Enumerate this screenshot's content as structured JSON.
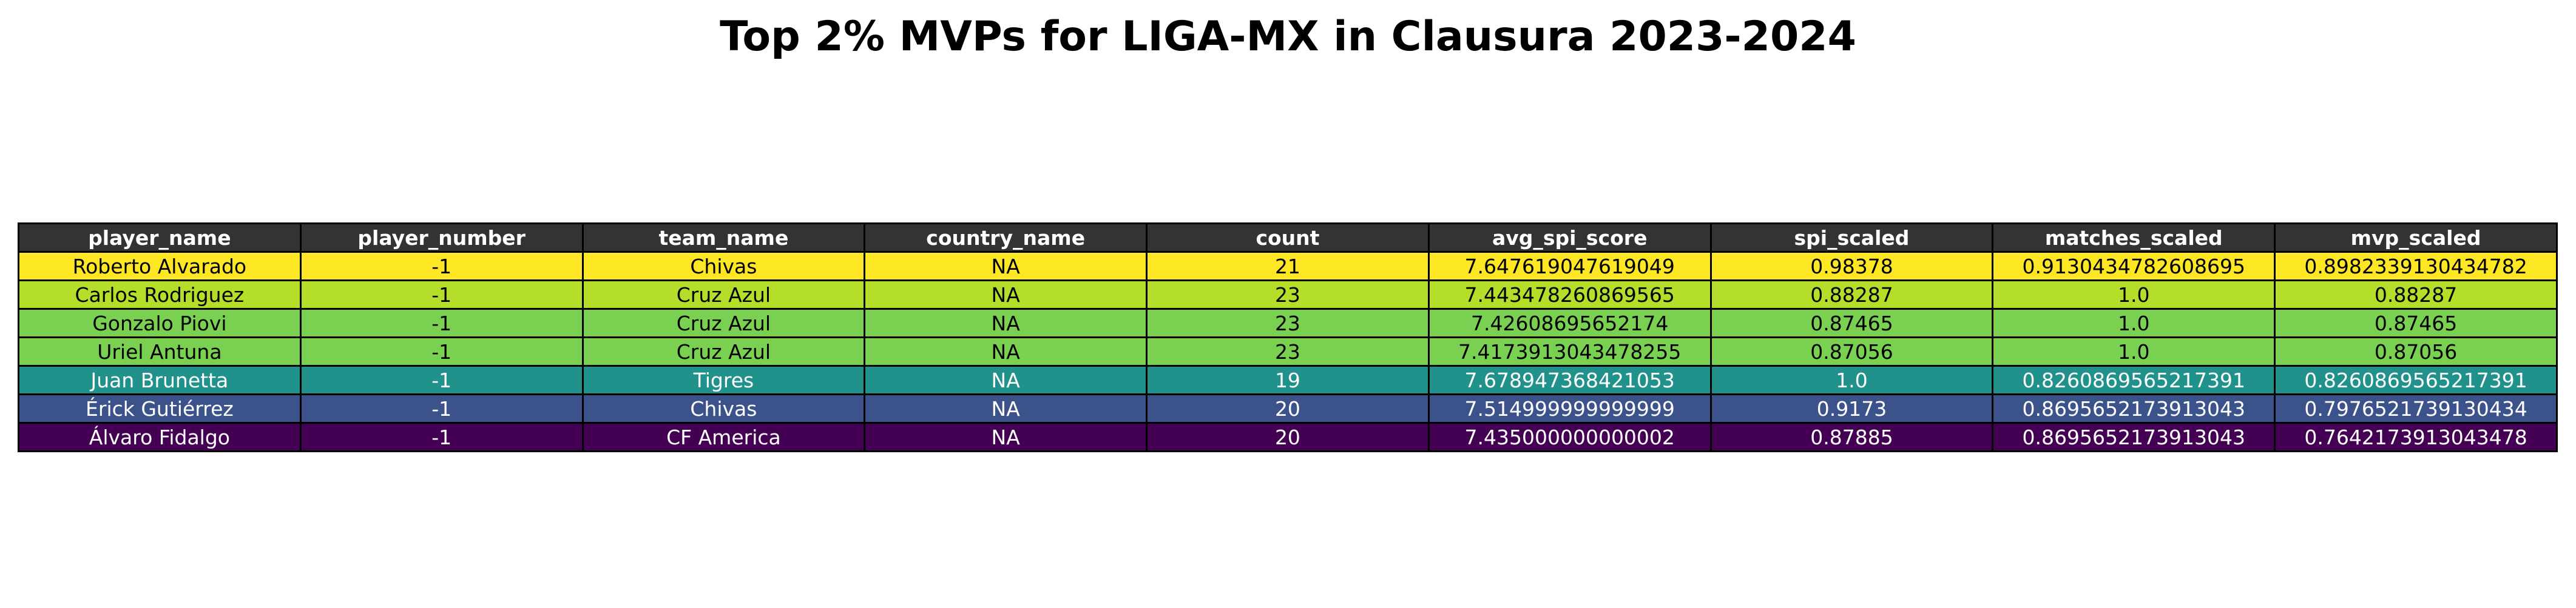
{
  "chart_data": {
    "type": "table",
    "title": "Top 2% MVPs for LIGA-MX in Clausura 2023-2024",
    "columns": [
      "player_name",
      "player_number",
      "team_name",
      "country_name",
      "count",
      "avg_spi_score",
      "spi_scaled",
      "matches_scaled",
      "mvp_scaled"
    ],
    "rows": [
      {
        "cells": [
          "Roberto Alvarado",
          "-1",
          "Chivas",
          "NA",
          "21",
          "7.647619047619049",
          "0.98378",
          "0.9130434782608695",
          "0.8982339130434782"
        ],
        "row_color": "#fde725",
        "text_color": "#000000"
      },
      {
        "cells": [
          "Carlos Rodriguez",
          "-1",
          "Cruz Azul",
          "NA",
          "23",
          "7.443478260869565",
          "0.88287",
          "1.0",
          "0.88287"
        ],
        "row_color": "#b5de2b",
        "text_color": "#000000"
      },
      {
        "cells": [
          "Gonzalo Piovi",
          "-1",
          "Cruz Azul",
          "NA",
          "23",
          "7.42608695652174",
          "0.87465",
          "1.0",
          "0.87465"
        ],
        "row_color": "#7ad151",
        "text_color": "#000000"
      },
      {
        "cells": [
          "Uriel Antuna",
          "-1",
          "Cruz Azul",
          "NA",
          "23",
          "7.4173913043478255",
          "0.87056",
          "1.0",
          "0.87056"
        ],
        "row_color": "#7ad151",
        "text_color": "#000000"
      },
      {
        "cells": [
          "Juan Brunetta",
          "-1",
          "Tigres",
          "NA",
          "19",
          "7.678947368421053",
          "1.0",
          "0.8260869565217391",
          "0.8260869565217391"
        ],
        "row_color": "#21918c",
        "text_color": "#ffffff"
      },
      {
        "cells": [
          "Érick Gutiérrez",
          "-1",
          "Chivas",
          "NA",
          "20",
          "7.514999999999999",
          "0.9173",
          "0.8695652173913043",
          "0.7976521739130434"
        ],
        "row_color": "#3b528b",
        "text_color": "#ffffff"
      },
      {
        "cells": [
          "Álvaro Fidalgo",
          "-1",
          "CF America",
          "NA",
          "20",
          "7.435000000000002",
          "0.87885",
          "0.8695652173913043",
          "0.7642173913043478"
        ],
        "row_color": "#440154",
        "text_color": "#ffffff"
      }
    ]
  }
}
